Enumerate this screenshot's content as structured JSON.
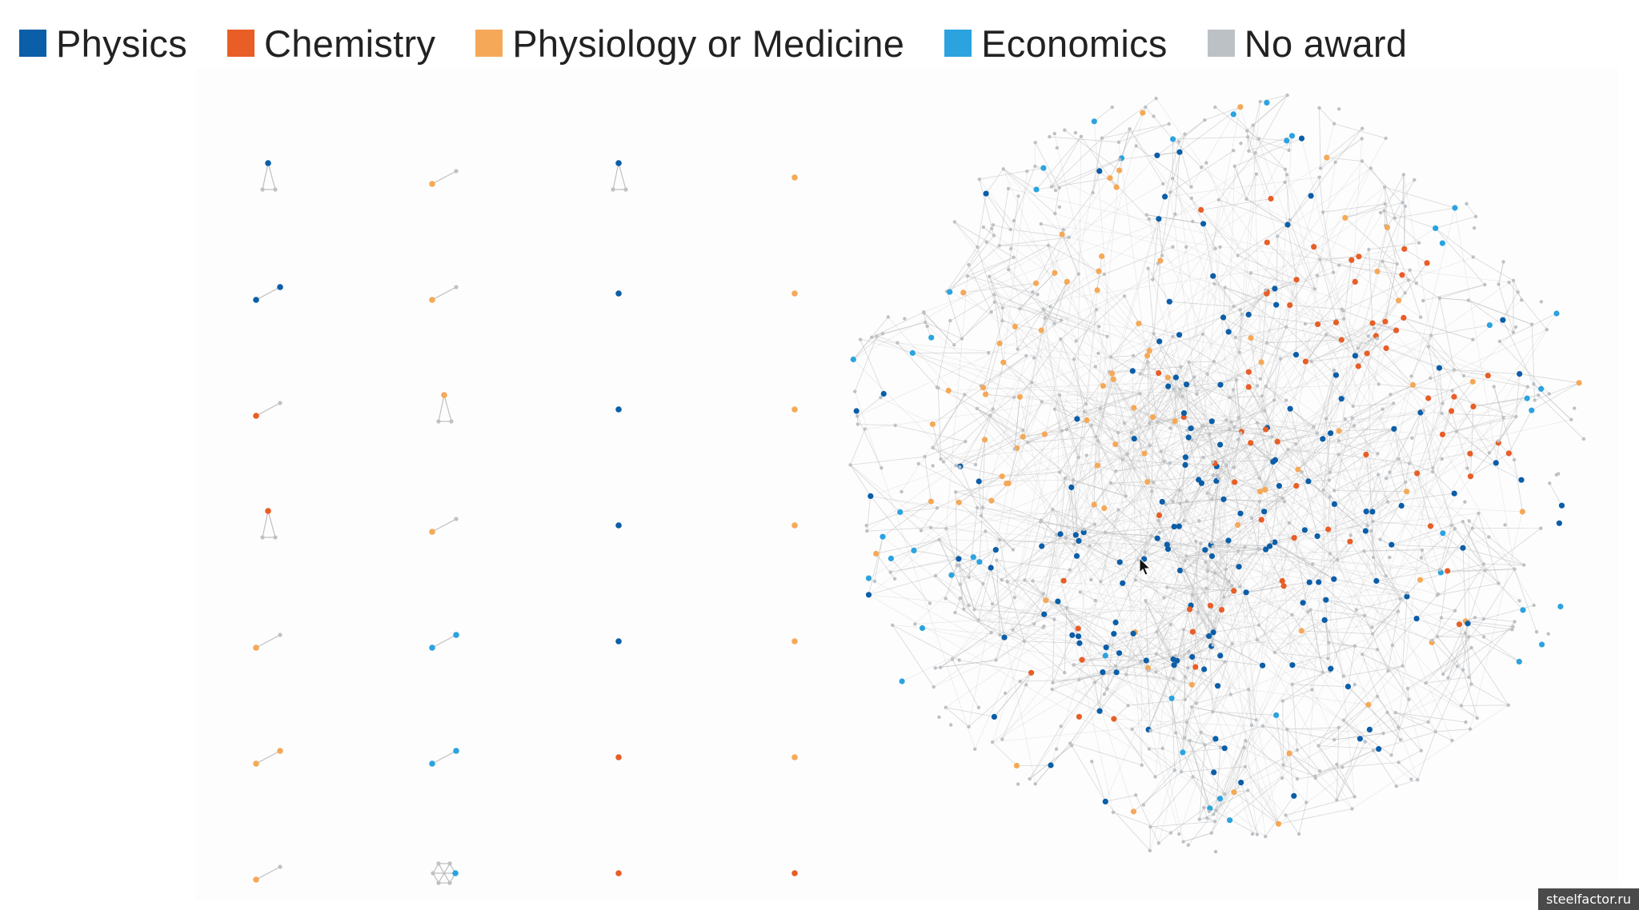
{
  "legend": {
    "items": [
      {
        "label": "Physics",
        "color": "#0b5ea8"
      },
      {
        "label": "Chemistry",
        "color": "#e85e26"
      },
      {
        "label": "Physiology or Medicine",
        "color": "#f5a958"
      },
      {
        "label": "Economics",
        "color": "#2ba3df"
      },
      {
        "label": "No award",
        "color": "#bcc1c6"
      }
    ]
  },
  "colors": {
    "edge": "#b8b8b8",
    "node_no_award": "#bcc1c6"
  },
  "watermark": "steelfactor.ru",
  "small_components": [
    [
      "Physics",
      "No award",
      "No award"
    ],
    [
      "Physiology or Medicine",
      "No award"
    ],
    [
      "Physics",
      "No award",
      "No award"
    ],
    [
      "Physiology or Medicine"
    ],
    [
      "Physics",
      "Physics"
    ],
    [
      "Physiology or Medicine",
      "No award"
    ],
    [
      "Physics"
    ],
    [
      "Physiology or Medicine"
    ],
    [
      "Chemistry",
      "No award"
    ],
    [
      "Physiology or Medicine",
      "No award",
      "No award"
    ],
    [
      "Physics"
    ],
    [
      "Physiology or Medicine"
    ],
    [
      "Chemistry",
      "No award",
      "No award"
    ],
    [
      "Physiology or Medicine",
      "No award"
    ],
    [
      "Physics"
    ],
    [
      "Physiology or Medicine"
    ],
    [
      "Physiology or Medicine",
      "No award"
    ],
    [
      "Economics",
      "Economics"
    ],
    [
      "Physics"
    ],
    [
      "Physiology or Medicine"
    ],
    [
      "Physiology or Medicine",
      "Physiology or Medicine"
    ],
    [
      "Economics",
      "Economics"
    ],
    [
      "Chemistry"
    ],
    [
      "Physiology or Medicine"
    ],
    [
      "Physiology or Medicine",
      "No award"
    ],
    [
      "Economics",
      "No award",
      "No award",
      "No award",
      "No award",
      "No award"
    ],
    [
      "Chemistry"
    ],
    [
      "Chemistry"
    ]
  ]
}
